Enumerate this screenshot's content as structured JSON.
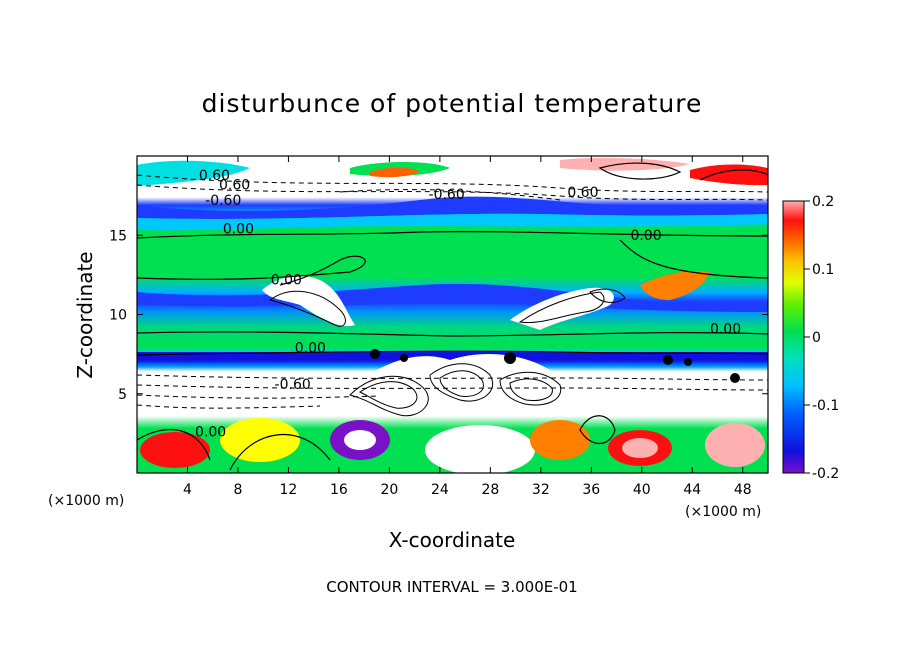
{
  "chart_data": {
    "type": "heatmap",
    "title": "disturbunce of potential temperature",
    "xlabel": "X-coordinate",
    "ylabel": "Z-coordinate",
    "x_unit": "(×1000 m)",
    "y_unit": "(×1000 m)",
    "xlim": [
      0,
      50
    ],
    "ylim": [
      0,
      20
    ],
    "x_ticks": [
      4,
      8,
      12,
      16,
      20,
      24,
      28,
      32,
      36,
      40,
      44,
      48
    ],
    "y_ticks": [
      5,
      10,
      15
    ],
    "colorbar": {
      "range": [
        -0.2,
        0.2
      ],
      "tick_values": [
        0.2,
        0.1,
        0,
        -0.1,
        -0.2
      ],
      "tick_labels": [
        "0.2",
        "0.1",
        "0",
        "-0.1",
        "-0.2"
      ]
    },
    "contour_labels": [
      {
        "text": "0.60",
        "x": 4.9,
        "z": 18.5
      },
      {
        "text": "0.60",
        "x": 6.5,
        "z": 17.9
      },
      {
        "text": "-0.60",
        "x": 5.4,
        "z": 16.9
      },
      {
        "text": "-0.60",
        "x": 23.1,
        "z": 17.3
      },
      {
        "text": "0.60",
        "x": 34.1,
        "z": 17.4
      },
      {
        "text": "0.00",
        "x": 6.8,
        "z": 15.1
      },
      {
        "text": "0.00",
        "x": 39.1,
        "z": 14.7
      },
      {
        "text": "0.00",
        "x": 10.6,
        "z": 11.9
      },
      {
        "text": "0.00",
        "x": 45.4,
        "z": 8.8
      },
      {
        "text": "0.00",
        "x": 12.5,
        "z": 7.6
      },
      {
        "text": "-0.60",
        "x": 10.9,
        "z": 5.3
      },
      {
        "text": "0.00",
        "x": 4.6,
        "z": 2.3
      }
    ],
    "contour_interval_text": "CONTOUR INTERVAL = 3.000E-01"
  },
  "colors": {
    "background_field": "#00e050",
    "cold_band": "#1e3cff",
    "colorbar_stops": [
      "#7a10c8",
      "#1010e0",
      "#00a0ff",
      "#00e0e0",
      "#00e050",
      "#a0ff00",
      "#ffff00",
      "#ff8000",
      "#ff1010",
      "#ffb0b0"
    ]
  }
}
